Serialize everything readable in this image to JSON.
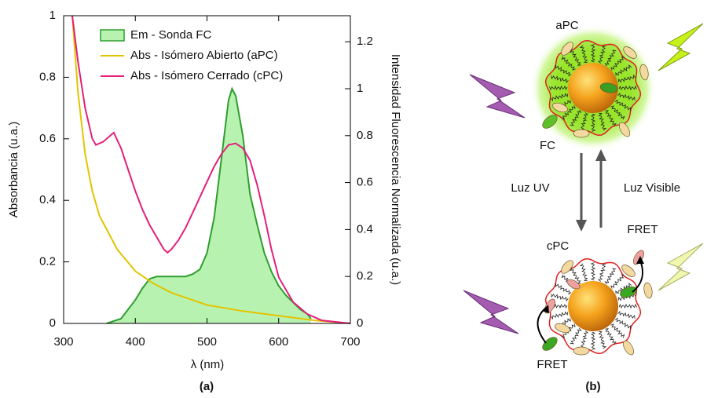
{
  "chart_data": {
    "type": "line",
    "panel_label": "(a)",
    "xlabel": "λ (nm)",
    "ylabel": "Absorbancia (u.a.)",
    "y2label": "Intensidad Fluorescencia Normalizada (u.a.)",
    "xlim": [
      300,
      700
    ],
    "xticks": [
      300,
      400,
      500,
      600,
      700
    ],
    "ylim": [
      0,
      1
    ],
    "yticks": [
      0,
      0.2,
      0.4,
      0.6,
      0.8,
      1
    ],
    "y2lim": [
      0,
      1.311
    ],
    "y2ticks": [
      0,
      0.2,
      0.4,
      0.6,
      0.8,
      1,
      1.2
    ],
    "legend": "upper left",
    "series": [
      {
        "name": "Em - Sonda FC",
        "color": "#2e9e2e",
        "fill": "#b8f2b0",
        "axis": "y2",
        "x": [
          360,
          380,
          400,
          410,
          420,
          430,
          440,
          450,
          460,
          470,
          480,
          490,
          500,
          510,
          520,
          530,
          535,
          540,
          550,
          560,
          570,
          580,
          590,
          600,
          610,
          620,
          630,
          640,
          645
        ],
        "values": [
          0,
          0.02,
          0.1,
          0.15,
          0.19,
          0.2,
          0.2,
          0.2,
          0.2,
          0.2,
          0.21,
          0.23,
          0.3,
          0.45,
          0.7,
          0.95,
          1.0,
          0.97,
          0.8,
          0.55,
          0.42,
          0.3,
          0.22,
          0.16,
          0.12,
          0.09,
          0.06,
          0.04,
          0.02
        ]
      },
      {
        "name": "Abs - Isómero Abierto (aPC)",
        "color": "#e2c400",
        "x": [
          312,
          320,
          330,
          340,
          350,
          375,
          400,
          425,
          450,
          500,
          550,
          600,
          650,
          700
        ],
        "values": [
          1.0,
          0.75,
          0.55,
          0.43,
          0.35,
          0.24,
          0.17,
          0.13,
          0.1,
          0.06,
          0.04,
          0.025,
          0.01,
          0
        ]
      },
      {
        "name": "Abs - Isómero Cerrado (cPC)",
        "color": "#e3207a",
        "x": [
          312,
          320,
          330,
          340,
          345,
          355,
          365,
          370,
          380,
          390,
          400,
          410,
          420,
          430,
          440,
          445,
          450,
          460,
          470,
          480,
          490,
          500,
          510,
          520,
          530,
          540,
          550,
          560,
          570,
          580,
          590,
          600,
          620,
          640,
          660,
          700
        ],
        "values": [
          1.0,
          0.85,
          0.7,
          0.6,
          0.58,
          0.59,
          0.61,
          0.62,
          0.57,
          0.5,
          0.43,
          0.37,
          0.32,
          0.28,
          0.24,
          0.23,
          0.24,
          0.27,
          0.31,
          0.36,
          0.41,
          0.46,
          0.51,
          0.55,
          0.58,
          0.585,
          0.57,
          0.53,
          0.45,
          0.35,
          0.24,
          0.15,
          0.07,
          0.03,
          0.01,
          0
        ]
      }
    ]
  },
  "diagram": {
    "panel_label": "(b)",
    "top_label": "aPC",
    "fc_label": "FC",
    "uv_label": "Luz UV",
    "visible_label": "Luz Visible",
    "bottom_label": "cPC",
    "fret_labels": [
      "FRET",
      "FRET"
    ]
  }
}
